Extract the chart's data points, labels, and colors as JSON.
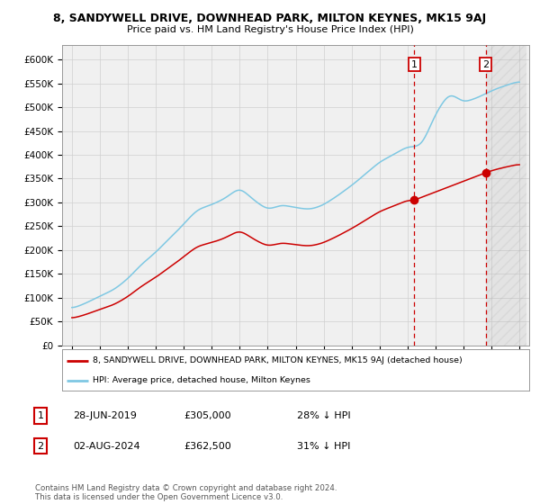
{
  "title": "8, SANDYWELL DRIVE, DOWNHEAD PARK, MILTON KEYNES, MK15 9AJ",
  "subtitle": "Price paid vs. HM Land Registry's House Price Index (HPI)",
  "hpi_color": "#7ec8e3",
  "price_color": "#cc0000",
  "marker_color": "#cc0000",
  "vline_color": "#cc0000",
  "background_color": "#ffffff",
  "plot_bg_color": "#f0f0f0",
  "grid_color": "#d0d0d0",
  "legend_box_color": "#cc0000",
  "purchase1_date": 2019.49,
  "purchase1_price": 305000,
  "purchase2_date": 2024.58,
  "purchase2_price": 362500,
  "yticks": [
    0,
    50000,
    100000,
    150000,
    200000,
    250000,
    300000,
    350000,
    400000,
    450000,
    500000,
    550000,
    600000
  ],
  "ytick_labels": [
    "£0",
    "£50K",
    "£100K",
    "£150K",
    "£200K",
    "£250K",
    "£300K",
    "£350K",
    "£400K",
    "£450K",
    "£500K",
    "£550K",
    "£600K"
  ],
  "footer_text": "Contains HM Land Registry data © Crown copyright and database right 2024.\nThis data is licensed under the Open Government Licence v3.0.",
  "legend_line1": "8, SANDYWELL DRIVE, DOWNHEAD PARK, MILTON KEYNES, MK15 9AJ (detached house)",
  "legend_line2": "HPI: Average price, detached house, Milton Keynes",
  "table_rows": [
    {
      "num": "1",
      "date": "28-JUN-2019",
      "price": "£305,000",
      "hpi": "28% ↓ HPI"
    },
    {
      "num": "2",
      "date": "02-AUG-2024",
      "price": "£362,500",
      "hpi": "31% ↓ HPI"
    }
  ],
  "hpi_data": {
    "years": [
      1995,
      1996,
      1997,
      1998,
      1999,
      2000,
      2001,
      2002,
      2003,
      2004,
      2005,
      2006,
      2007,
      2008,
      2009,
      2010,
      2011,
      2012,
      2013,
      2014,
      2015,
      2016,
      2017,
      2018,
      2019,
      2020,
      2021,
      2022,
      2023,
      2024,
      2025,
      2026,
      2027
    ],
    "values": [
      78000,
      88000,
      103000,
      118000,
      140000,
      170000,
      195000,
      225000,
      255000,
      285000,
      295000,
      310000,
      330000,
      305000,
      285000,
      295000,
      290000,
      285000,
      295000,
      315000,
      335000,
      360000,
      385000,
      400000,
      418000,
      420000,
      485000,
      530000,
      510000,
      520000,
      535000,
      545000,
      555000
    ]
  }
}
